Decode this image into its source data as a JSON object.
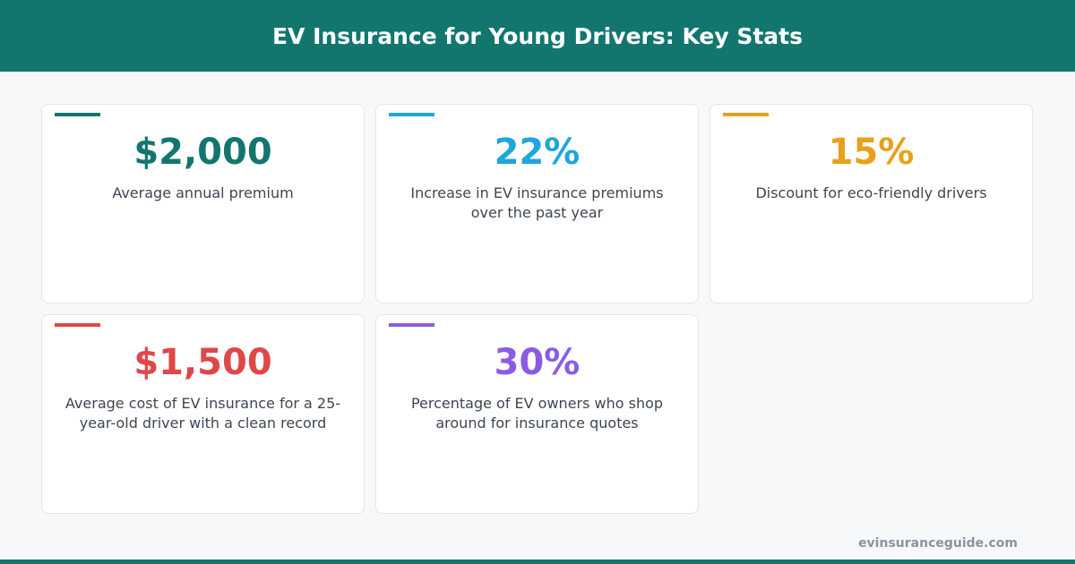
{
  "header": {
    "title": "EV Insurance for Young Drivers: Key Stats"
  },
  "cards": [
    {
      "value": "$2,000",
      "label": "Average annual premium",
      "color": "#13766e"
    },
    {
      "value": "22%",
      "label": "Increase in EV insurance premiums over the past year",
      "color": "#1fa6dc"
    },
    {
      "value": "15%",
      "label": "Discount for eco-friendly drivers",
      "color": "#e8a11b"
    },
    {
      "value": "$1,500",
      "label": "Average cost of EV insurance for a 25-year-old driver with a clean record",
      "color": "#e04747"
    },
    {
      "value": "30%",
      "label": "Percentage of EV owners who shop around for insurance quotes",
      "color": "#8b5ce1"
    }
  ],
  "footer": {
    "source": "evinsuranceguide.com"
  }
}
